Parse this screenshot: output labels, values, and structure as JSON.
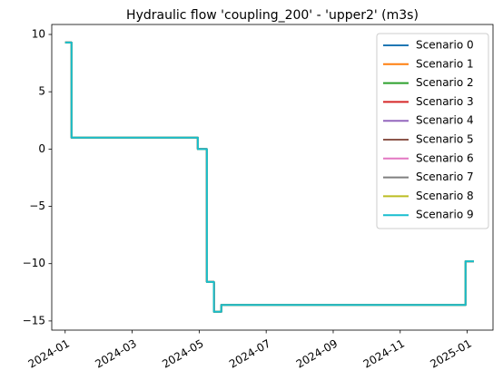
{
  "chart_data": {
    "type": "line",
    "title": "Hydraulic flow 'coupling_200' - 'upper2' (m3s)",
    "x": [
      0,
      0.19,
      0.19,
      3.96,
      3.96,
      4.23,
      4.23,
      4.44,
      4.44,
      4.66,
      4.66,
      11.95,
      11.95,
      12.2
    ],
    "series": [
      {
        "name": "Scenario 0",
        "color": "#1f77b4",
        "values": [
          9.3,
          9.3,
          1.0,
          1.0,
          0.0,
          0.0,
          -11.6,
          -11.6,
          -14.2,
          -14.2,
          -13.6,
          -13.6,
          -9.8,
          -9.8
        ]
      },
      {
        "name": "Scenario 1",
        "color": "#ff7f0e",
        "values": [
          9.3,
          9.3,
          1.0,
          1.0,
          0.0,
          0.0,
          -11.6,
          -11.6,
          -14.2,
          -14.2,
          -13.6,
          -13.6,
          -9.8,
          -9.8
        ]
      },
      {
        "name": "Scenario 2",
        "color": "#2ca02c",
        "values": [
          9.3,
          9.3,
          1.0,
          1.0,
          0.0,
          0.0,
          -11.6,
          -11.6,
          -14.2,
          -14.2,
          -13.6,
          -13.6,
          -9.8,
          -9.8
        ]
      },
      {
        "name": "Scenario 3",
        "color": "#d62728",
        "values": [
          9.3,
          9.3,
          1.0,
          1.0,
          0.0,
          0.0,
          -11.6,
          -11.6,
          -14.2,
          -14.2,
          -13.6,
          -13.6,
          -9.8,
          -9.8
        ]
      },
      {
        "name": "Scenario 4",
        "color": "#9467bd",
        "values": [
          9.3,
          9.3,
          1.0,
          1.0,
          0.0,
          0.0,
          -11.6,
          -11.6,
          -14.2,
          -14.2,
          -13.6,
          -13.6,
          -9.8,
          -9.8
        ]
      },
      {
        "name": "Scenario 5",
        "color": "#8c564b",
        "values": [
          9.3,
          9.3,
          1.0,
          1.0,
          0.0,
          0.0,
          -11.6,
          -11.6,
          -14.2,
          -14.2,
          -13.6,
          -13.6,
          -9.8,
          -9.8
        ]
      },
      {
        "name": "Scenario 6",
        "color": "#e377c2",
        "values": [
          9.3,
          9.3,
          1.0,
          1.0,
          0.0,
          0.0,
          -11.6,
          -11.6,
          -14.2,
          -14.2,
          -13.6,
          -13.6,
          -9.8,
          -9.8
        ]
      },
      {
        "name": "Scenario 7",
        "color": "#7f7f7f",
        "values": [
          9.3,
          9.3,
          1.0,
          1.0,
          0.0,
          0.0,
          -11.6,
          -11.6,
          -14.2,
          -14.2,
          -13.6,
          -13.6,
          -9.8,
          -9.8
        ]
      },
      {
        "name": "Scenario 8",
        "color": "#bcbd22",
        "values": [
          9.3,
          9.3,
          1.0,
          1.0,
          0.0,
          0.0,
          -11.6,
          -11.6,
          -14.2,
          -14.2,
          -13.6,
          -13.6,
          -9.8,
          -9.8
        ]
      },
      {
        "name": "Scenario 9",
        "color": "#17becf",
        "values": [
          9.3,
          9.3,
          1.0,
          1.0,
          0.0,
          0.0,
          -11.6,
          -11.6,
          -14.2,
          -14.2,
          -13.6,
          -13.6,
          -9.8,
          -9.8
        ]
      }
    ],
    "xlim": [
      -0.4,
      12.77
    ],
    "xticks": [
      {
        "value": 0,
        "label": "2024-01"
      },
      {
        "value": 2,
        "label": "2024-03"
      },
      {
        "value": 4,
        "label": "2024-05"
      },
      {
        "value": 6,
        "label": "2024-07"
      },
      {
        "value": 8,
        "label": "2024-09"
      },
      {
        "value": 10,
        "label": "2024-11"
      },
      {
        "value": 12,
        "label": "2025-01"
      }
    ],
    "ylim": [
      -15.8,
      10.87
    ],
    "yticks": [
      {
        "value": -15,
        "label": "−15"
      },
      {
        "value": -10,
        "label": "−10"
      },
      {
        "value": -5,
        "label": "−5"
      },
      0,
      5,
      10
    ],
    "grid": false,
    "legend": "upper right"
  }
}
